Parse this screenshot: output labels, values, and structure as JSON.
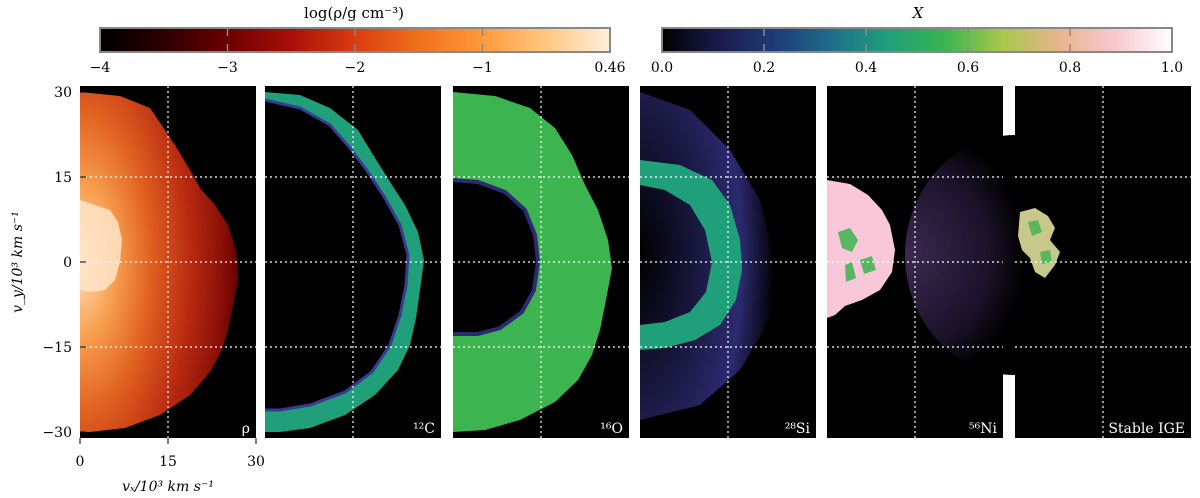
{
  "chart_data": {
    "type": "heatmap",
    "colorbars": [
      {
        "title": "log(ρ/g cm⁻³)",
        "ticks": [
          "−4",
          "−3",
          "−2",
          "−1",
          "0.46"
        ],
        "range": [
          -4,
          0.46
        ],
        "colors": [
          "#000000",
          "#2b0000",
          "#6b0000",
          "#a81008",
          "#d83c10",
          "#f0701c",
          "#ff9a3c",
          "#ffc882",
          "#fff0dc"
        ]
      },
      {
        "title": "X",
        "ticks": [
          "0.0",
          "0.2",
          "0.4",
          "0.6",
          "0.8",
          "1.0"
        ],
        "range": [
          0,
          1
        ],
        "colors": [
          "#000000",
          "#1a1a4a",
          "#1e3a78",
          "#1f6e8a",
          "#1fa07a",
          "#3cb450",
          "#a8c84c",
          "#e8b48c",
          "#f8c8d2",
          "#ffffff"
        ]
      }
    ],
    "panels": [
      {
        "label": "ρ",
        "field": "density"
      },
      {
        "label": "¹²C",
        "field": "carbon-12"
      },
      {
        "label": "¹⁶O",
        "field": "oxygen-16"
      },
      {
        "label": "²⁸Si",
        "field": "silicon-28"
      },
      {
        "label": "⁵⁶Ni",
        "field": "nickel-56"
      },
      {
        "label": "Stable IGE",
        "field": "stable-iron-group"
      }
    ],
    "x_axis": {
      "label": "vₓ/10³ km s⁻¹",
      "ticks": [
        "0",
        "15",
        "30"
      ],
      "range": [
        0,
        30
      ]
    },
    "y_axis": {
      "label": "v_y/10³ km s⁻¹",
      "ticks": [
        "30",
        "15",
        "0",
        "−15",
        "−30"
      ],
      "range": [
        -30,
        30
      ]
    },
    "grid": true
  }
}
